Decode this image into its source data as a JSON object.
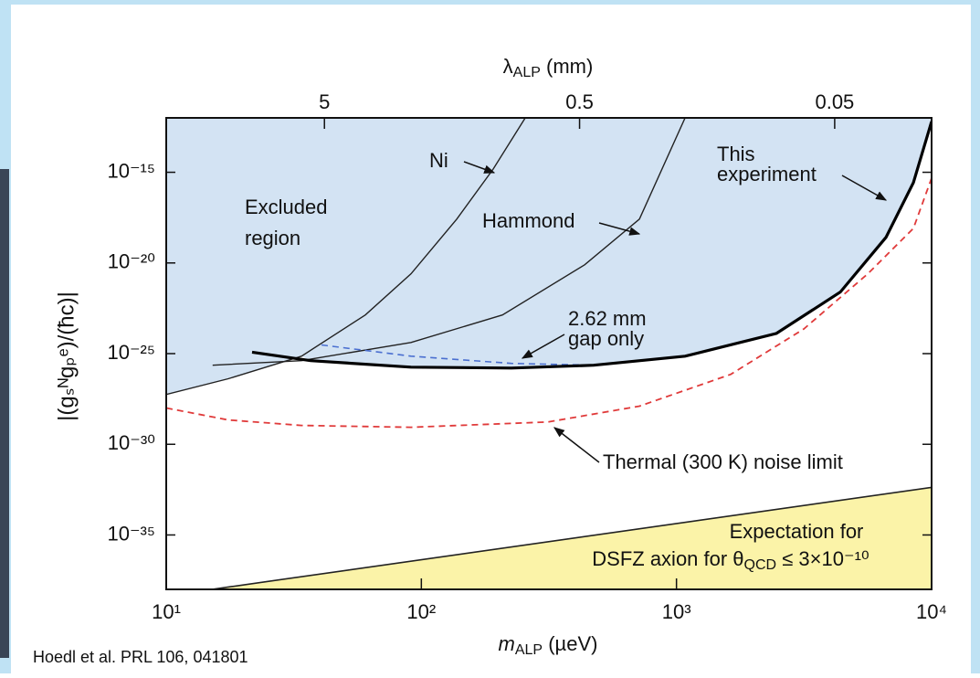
{
  "chart_data": {
    "type": "line",
    "x_label": {
      "base": "m",
      "sub": "ALP",
      "tail": " (µeV)"
    },
    "x2_label": {
      "base": "λ",
      "sub": "ALP",
      "tail": " (mm)"
    },
    "y_label": "|(gₛᴺgₚᵉ)/(ħc)|",
    "log_x": true,
    "log_y": true,
    "xlim": [
      10,
      10000
    ],
    "xticks": [
      {
        "value": 10,
        "label": "10¹"
      },
      {
        "value": 100,
        "label": "10²"
      },
      {
        "value": 1000,
        "label": "10³"
      },
      {
        "value": 10000,
        "label": "10⁴"
      }
    ],
    "x2lim": [
      20.85,
      0.02085
    ],
    "x2ticks": [
      5,
      0.5,
      0.05
    ],
    "ylim": [
      1e-38,
      1e-12
    ],
    "yticks": [
      {
        "value": 1e-15,
        "label": "10⁻¹⁵"
      },
      {
        "value": 1e-20,
        "label": "10⁻²⁰"
      },
      {
        "value": 1e-25,
        "label": "10⁻²⁵"
      },
      {
        "value": 1e-30,
        "label": "10⁻³⁰"
      },
      {
        "value": 1e-35,
        "label": "10⁻³⁵"
      }
    ],
    "series": [
      {
        "fill": "above",
        "color": "#d3e3f3",
        "x": [
          10,
          17.5,
          33.9,
          36.8,
          91.1,
          225.6,
          473.8,
          1081,
          2465,
          4388,
          6627,
          8485,
          10000
        ],
        "values": [
          5.6e-28,
          4.1e-27,
          7.2e-26,
          4.1e-26,
          1.8e-26,
          1.6e-26,
          2.3e-26,
          7.2e-26,
          1.3e-24,
          2.5e-22,
          2.6e-19,
          2.7e-16,
          6.3e-13
        ]
      },
      {
        "fill": "below",
        "color": "#fbf3a8",
        "stroke": "#222222",
        "x": [
          15.1,
          10000
        ],
        "values": [
          1e-38,
          4.2e-33
        ]
      },
      {
        "color": "#222222",
        "width": 1.4,
        "x": [
          10,
          17.5,
          33.9,
          60.3,
          91.1,
          137.6,
          191.3,
          255.4
        ],
        "values": [
          5.6e-28,
          4.1e-27,
          7.2e-26,
          1.35e-23,
          2.5e-21,
          2.6e-18,
          1.5e-15,
          1e-12
        ]
      },
      {
        "color": "#222222",
        "width": 1.4,
        "x": [
          15.2,
          33.9,
          91.1,
          207.8,
          436.4,
          715.5,
          1081
        ],
        "values": [
          2.3e-26,
          4.1e-26,
          4.1e-25,
          1.35e-23,
          7.9e-21,
          2.6e-18,
          1e-12
        ]
      },
      {
        "color": "#4a6fd0",
        "width": 1.6,
        "dashed": true,
        "x": [
          40.6,
          91.1,
          225.6,
          473.8
        ],
        "values": [
          3e-25,
          7.2e-26,
          2.9e-26,
          2.3e-26
        ]
      },
      {
        "color": "#e03a3a",
        "width": 1.8,
        "dashed": true,
        "x": [
          10,
          17.5,
          33.9,
          91.1,
          313.7,
          715.5,
          1632,
          3156,
          5620,
          8485,
          10000
        ],
        "values": [
          1e-28,
          2.2e-29,
          1.1e-29,
          8.7e-30,
          1.7e-29,
          1.26e-28,
          7.2e-27,
          2.3e-24,
          2.5e-21,
          8.1e-19,
          4.8e-16
        ]
      },
      {
        "color": "#000000",
        "width": 3.2,
        "x": [
          21.7,
          36.8,
          91.1,
          225.6,
          473.8,
          1081,
          2465,
          4388,
          6627,
          8485,
          10000
        ],
        "values": [
          1.2e-25,
          4.1e-26,
          1.8e-26,
          1.6e-26,
          2.3e-26,
          7.2e-26,
          1.3e-24,
          2.5e-22,
          2.6e-19,
          2.7e-16,
          6.3e-13
        ]
      }
    ],
    "annotations": [
      {
        "lines": [
          "Excluded",
          "region"
        ]
      },
      {
        "lines": [
          "Ni"
        ]
      },
      {
        "lines": [
          "Hammond"
        ]
      },
      {
        "lines": [
          "This",
          "experiment"
        ]
      },
      {
        "lines": [
          "2.62 mm",
          "gap only"
        ]
      },
      {
        "lines": [
          "Thermal (300 K) noise limit"
        ]
      },
      {
        "lines": [
          "Expectation for",
          [
            "DSFZ axion for θ",
            "QCD",
            " ≤ 3×10⁻¹⁰"
          ]
        ]
      }
    ],
    "citation": "Hoedl et al. PRL 106, 041801"
  }
}
